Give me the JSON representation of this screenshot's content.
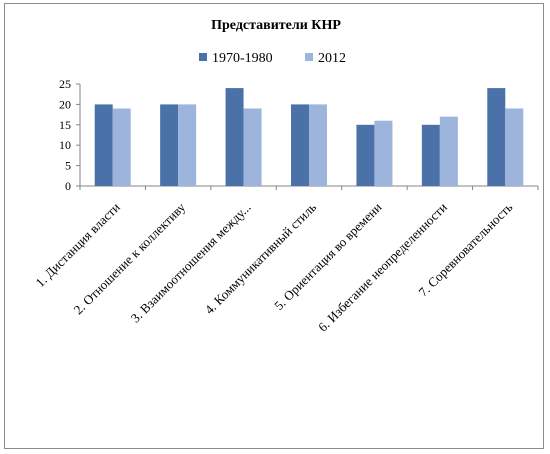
{
  "chart_data": {
    "type": "bar",
    "title": "Представители КНР",
    "categories": [
      "1. Дистанция власти",
      "2. Отношение к коллективу",
      "3. Взаимоотношения между...",
      "4. Коммуникативный стиль",
      "5. Ориентация во времени",
      "6. Избегание неопределенности",
      "7. Соревновательность"
    ],
    "series": [
      {
        "name": "1970-1980",
        "color": "#4a72a8",
        "values": [
          20,
          20,
          24,
          20,
          15,
          15,
          24
        ]
      },
      {
        "name": "2012",
        "color": "#9db4dc",
        "values": [
          19,
          20,
          19,
          20,
          16,
          17,
          19
        ]
      }
    ],
    "ylim": [
      0,
      25
    ],
    "yticks": [
      "0",
      "5",
      "10",
      "15",
      "20",
      "25"
    ],
    "grid": false,
    "legend_position": "top"
  }
}
